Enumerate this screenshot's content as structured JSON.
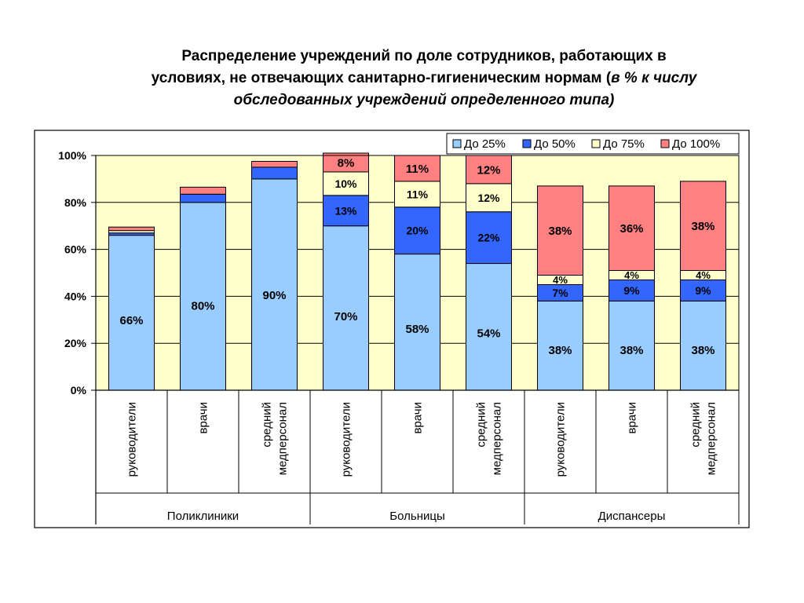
{
  "title": {
    "line1": "Распределение учреждений по доле сотрудников, работающих в",
    "line2_normal": "условиях, не отвечающих санитарно-гигиеническим нормам (",
    "line2_italic": "в % к  числу",
    "line3_italic": "обследованных учреждений определенного типа)"
  },
  "chart_data": {
    "type": "bar",
    "stacked": true,
    "ylim": [
      0,
      100
    ],
    "yticks": [
      "0%",
      "20%",
      "40%",
      "60%",
      "80%",
      "100%"
    ],
    "groups": [
      {
        "name": "Поликлиники",
        "categories": [
          "руководители",
          "врачи",
          "средний медперсонал"
        ]
      },
      {
        "name": "Больницы",
        "categories": [
          "руководители",
          "врачи",
          "средний медперсонал"
        ]
      },
      {
        "name": "Диспансеры",
        "categories": [
          "руководители",
          "врачи",
          "средний медперсонал"
        ]
      }
    ],
    "categories": [
      "руководители",
      "врачи",
      "средний медперсонал",
      "руководители",
      "врачи",
      "средний медперсонал",
      "руководители",
      "врачи",
      "средний медперсонал"
    ],
    "series": [
      {
        "name": "До 25%",
        "color": "#99ccff",
        "values": [
          66,
          80,
          90,
          70,
          58,
          54,
          38,
          38,
          38
        ],
        "labels": [
          "66%",
          "80%",
          "90%",
          "70%",
          "58%",
          "54%",
          "38%",
          "38%",
          "38%"
        ]
      },
      {
        "name": "До 50%",
        "color": "#3366ff",
        "values": [
          1,
          3.5,
          5,
          13,
          20,
          22,
          7,
          9,
          9
        ],
        "labels": [
          "",
          "",
          "",
          "13%",
          "20%",
          "22%",
          "7%",
          "9%",
          "9%"
        ]
      },
      {
        "name": "До 75%",
        "color": "#ffffcc",
        "values": [
          1,
          0,
          0,
          10,
          11,
          12,
          4,
          4,
          4
        ],
        "labels": [
          "",
          "",
          "",
          "10%",
          "11%",
          "12%",
          "4%",
          "4%",
          "4%"
        ]
      },
      {
        "name": "До 100%",
        "color": "#ff8080",
        "values": [
          1.5,
          3,
          2.5,
          8,
          11,
          12,
          38,
          36,
          38
        ],
        "labels": [
          "",
          "",
          "",
          "8%",
          "11%",
          "12%",
          "38%",
          "36%",
          "38%"
        ]
      }
    ],
    "legend": {
      "placement": "top-right"
    },
    "plot_background": "#ffffcc",
    "grid": true
  }
}
